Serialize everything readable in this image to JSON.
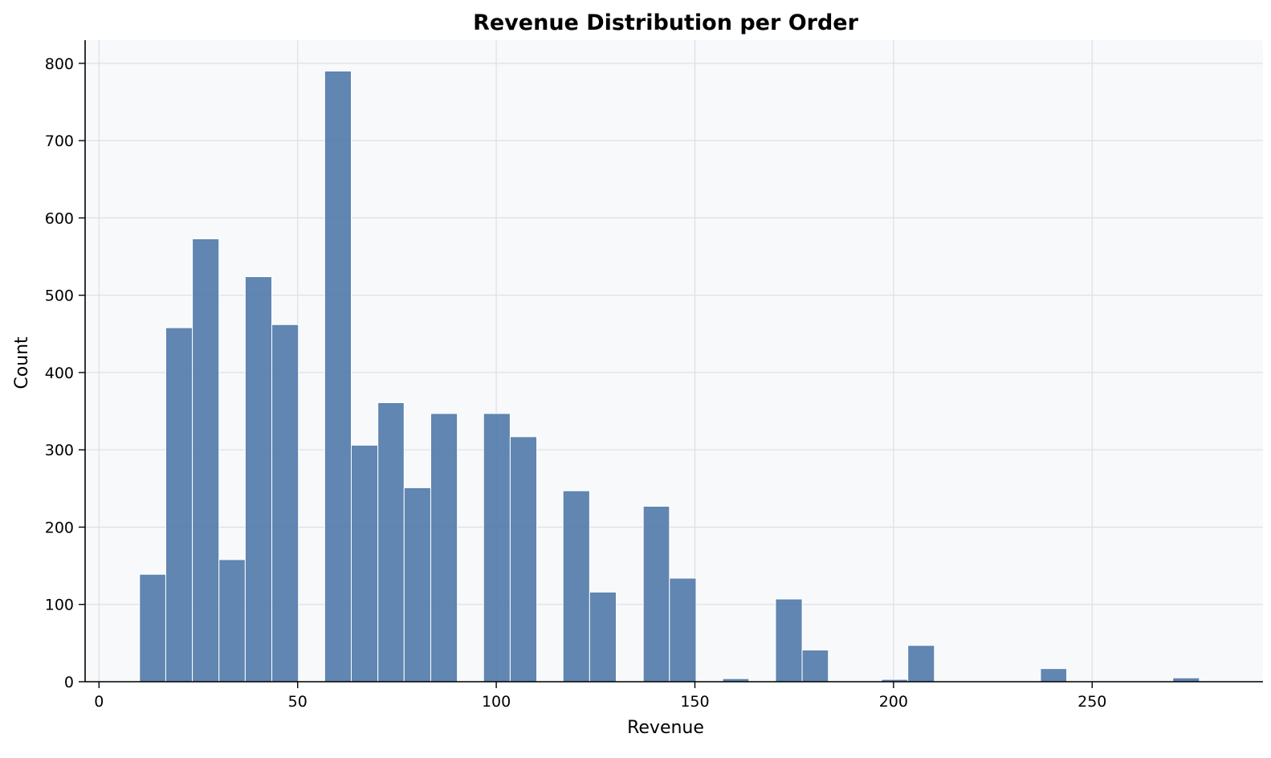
{
  "chart_data": {
    "type": "bar",
    "title": "Revenue Distribution per Order",
    "xlabel": "Revenue",
    "ylabel": "Count",
    "xlim": [
      -3.5,
      293
    ],
    "ylim": [
      0,
      830
    ],
    "xticks": [
      0,
      50,
      100,
      150,
      200,
      250
    ],
    "yticks": [
      0,
      100,
      200,
      300,
      400,
      500,
      600,
      700,
      800
    ],
    "grid": true,
    "bins": [
      {
        "x0": 10.2,
        "x1": 16.8,
        "count": 139
      },
      {
        "x0": 16.8,
        "x1": 23.5,
        "count": 458
      },
      {
        "x0": 23.5,
        "x1": 30.2,
        "count": 573
      },
      {
        "x0": 30.2,
        "x1": 36.8,
        "count": 158
      },
      {
        "x0": 36.8,
        "x1": 43.5,
        "count": 524
      },
      {
        "x0": 43.5,
        "x1": 50.2,
        "count": 462
      },
      {
        "x0": 56.8,
        "x1": 63.5,
        "count": 790
      },
      {
        "x0": 63.5,
        "x1": 70.2,
        "count": 306
      },
      {
        "x0": 70.2,
        "x1": 76.8,
        "count": 361
      },
      {
        "x0": 76.8,
        "x1": 83.5,
        "count": 251
      },
      {
        "x0": 83.5,
        "x1": 90.2,
        "count": 347
      },
      {
        "x0": 96.8,
        "x1": 103.5,
        "count": 347
      },
      {
        "x0": 103.5,
        "x1": 110.2,
        "count": 317
      },
      {
        "x0": 116.8,
        "x1": 123.5,
        "count": 247
      },
      {
        "x0": 123.5,
        "x1": 130.2,
        "count": 116
      },
      {
        "x0": 137.0,
        "x1": 143.6,
        "count": 227
      },
      {
        "x0": 143.6,
        "x1": 150.3,
        "count": 134
      },
      {
        "x0": 157.0,
        "x1": 163.6,
        "count": 4
      },
      {
        "x0": 170.3,
        "x1": 177.0,
        "count": 107
      },
      {
        "x0": 177.0,
        "x1": 183.6,
        "count": 41
      },
      {
        "x0": 197.0,
        "x1": 203.6,
        "count": 3
      },
      {
        "x0": 203.6,
        "x1": 210.3,
        "count": 47
      },
      {
        "x0": 237.0,
        "x1": 243.6,
        "count": 17
      },
      {
        "x0": 270.3,
        "x1": 277.0,
        "count": 5
      }
    ],
    "colors": {
      "bar": "#4f79a8",
      "bar_edge": "#ffffff",
      "plot_background": "#f8f9fb",
      "grid": "#dcdfe5",
      "axis": "#000000"
    }
  }
}
